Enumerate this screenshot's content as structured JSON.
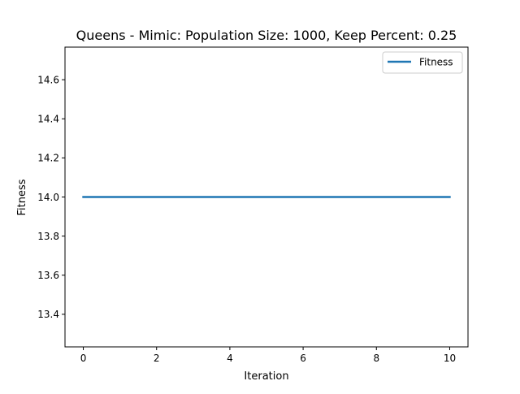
{
  "chart_data": {
    "type": "line",
    "title": "Queens - Mimic: Population Size: 1000, Keep Percent: 0.25",
    "xlabel": "Iteration",
    "ylabel": "Fitness",
    "xlim": [
      -0.5,
      10.5
    ],
    "ylim": [
      13.2333,
      14.7667
    ],
    "xticks": [
      0,
      2,
      4,
      6,
      8,
      10
    ],
    "yticks": [
      13.4,
      13.6,
      13.8,
      14.0,
      14.2,
      14.4,
      14.6
    ],
    "xtick_labels": [
      "0",
      "2",
      "4",
      "6",
      "8",
      "10"
    ],
    "ytick_labels": [
      "13.4",
      "13.6",
      "13.8",
      "14.0",
      "14.2",
      "14.4",
      "14.6"
    ],
    "grid": false,
    "legend": "top-right",
    "series": [
      {
        "name": "Fitness",
        "color": "#1f77b4",
        "x": [
          0,
          1,
          2,
          3,
          4,
          5,
          6,
          7,
          8,
          9,
          10
        ],
        "y": [
          14.0,
          14.0,
          14.0,
          14.0,
          14.0,
          14.0,
          14.0,
          14.0,
          14.0,
          14.0,
          14.0
        ]
      }
    ]
  }
}
